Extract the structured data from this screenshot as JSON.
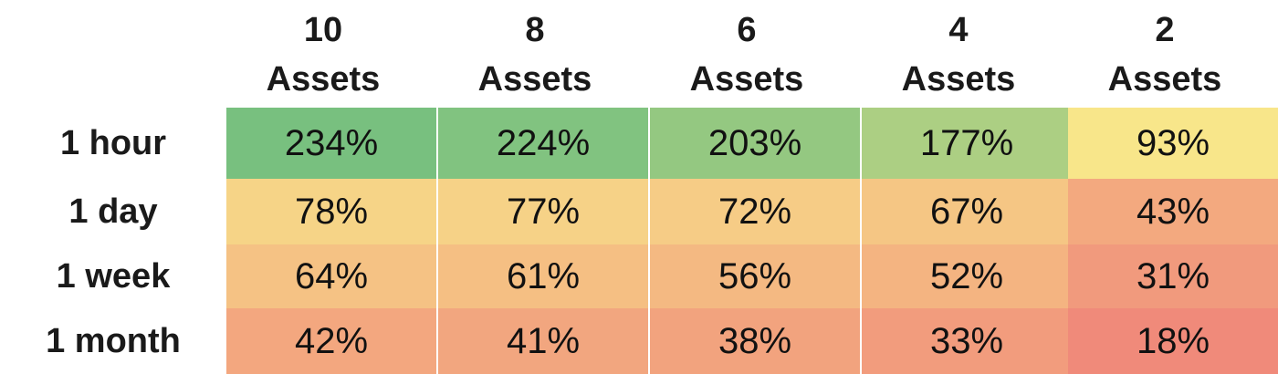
{
  "chart_data": {
    "type": "heatmap",
    "title": "",
    "columns": [
      {
        "count": "10",
        "unit": "Assets"
      },
      {
        "count": "8",
        "unit": "Assets"
      },
      {
        "count": "6",
        "unit": "Assets"
      },
      {
        "count": "4",
        "unit": "Assets"
      },
      {
        "count": "2",
        "unit": "Assets"
      }
    ],
    "rows": [
      "1 hour",
      "1 day",
      "1 week",
      "1 month"
    ],
    "values": [
      [
        234,
        224,
        203,
        177,
        93
      ],
      [
        78,
        77,
        72,
        67,
        43
      ],
      [
        64,
        61,
        56,
        52,
        31
      ],
      [
        42,
        41,
        38,
        33,
        18
      ]
    ],
    "value_suffix": "%",
    "color_scale": {
      "low": "#f08a7a",
      "mid": "#f8e68a",
      "high": "#78c07f",
      "min_value": 18,
      "mid_value": 93,
      "max_value": 234
    }
  }
}
